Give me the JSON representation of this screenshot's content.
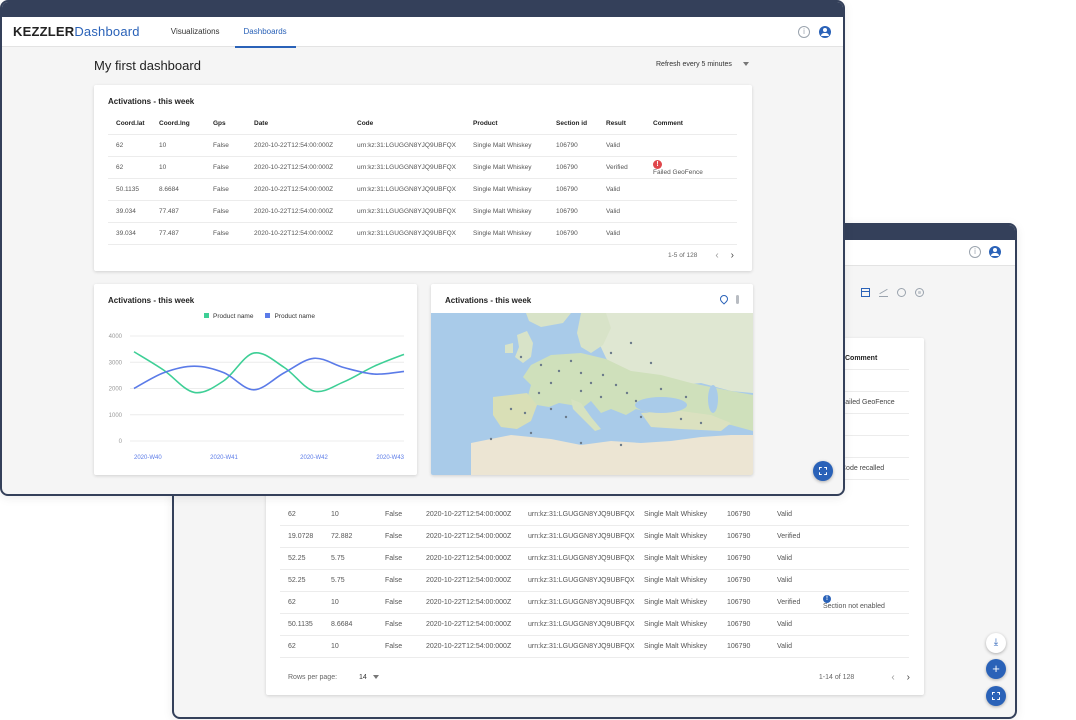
{
  "back_window": {
    "toolbar_icons": [
      "table-icon",
      "line-chart-icon",
      "pie-chart-icon",
      "globe-icon"
    ],
    "comment_header": "Comment",
    "right_column": [
      "",
      "Failed GeoFence",
      "",
      "",
      "Code recalled"
    ],
    "rows": [
      {
        "lat": "62",
        "lng": "10",
        "gps": "False",
        "date": "2020-10-22T12:54:00:000Z",
        "code": "urn:kz:31:LGUGGN8YJQ9UBFQX",
        "product": "Single Malt Whiskey",
        "section": "106790",
        "result": "Valid",
        "comment": ""
      },
      {
        "lat": "19.0728",
        "lng": "72.882",
        "gps": "False",
        "date": "2020-10-22T12:54:00:000Z",
        "code": "urn:kz:31:LGUGGN8YJQ9UBFQX",
        "product": "Single Malt Whiskey",
        "section": "106790",
        "result": "Verified",
        "comment": ""
      },
      {
        "lat": "52.25",
        "lng": "5.75",
        "gps": "False",
        "date": "2020-10-22T12:54:00:000Z",
        "code": "urn:kz:31:LGUGGN8YJQ9UBFQX",
        "product": "Single Malt Whiskey",
        "section": "106790",
        "result": "Valid",
        "comment": ""
      },
      {
        "lat": "52.25",
        "lng": "5.75",
        "gps": "False",
        "date": "2020-10-22T12:54:00:000Z",
        "code": "urn:kz:31:LGUGGN8YJQ9UBFQX",
        "product": "Single Malt Whiskey",
        "section": "106790",
        "result": "Valid",
        "comment": ""
      },
      {
        "lat": "62",
        "lng": "10",
        "gps": "False",
        "date": "2020-10-22T12:54:00:000Z",
        "code": "urn:kz:31:LGUGGN8YJQ9UBFQX",
        "product": "Single Malt Whiskey",
        "section": "106790",
        "result": "Verified",
        "comment": "Section not enabled"
      },
      {
        "lat": "50.1135",
        "lng": "8.6684",
        "gps": "False",
        "date": "2020-10-22T12:54:00:000Z",
        "code": "urn:kz:31:LGUGGN8YJQ9UBFQX",
        "product": "Single Malt Whiskey",
        "section": "106790",
        "result": "Valid",
        "comment": ""
      },
      {
        "lat": "62",
        "lng": "10",
        "gps": "False",
        "date": "2020-10-22T12:54:00:000Z",
        "code": "urn:kz:31:LGUGGN8YJQ9UBFQX",
        "product": "Single Malt Whiskey",
        "section": "106790",
        "result": "Valid",
        "comment": ""
      }
    ],
    "footer": {
      "rows_per_page_label": "Rows per page:",
      "rows_per_page": "14",
      "range": "1-14 of 128"
    }
  },
  "front_window": {
    "brand": {
      "part1": "KEZZLER",
      "part2": "Dashboard"
    },
    "nav": [
      "Visualizations",
      "Dashboards"
    ],
    "active_nav": "Dashboards",
    "page_title": "My first dashboard",
    "refresh": "Refresh every 5 minutes",
    "table_card": {
      "title": "Activations - this week",
      "headers": [
        "Coord.lat",
        "Coord.lng",
        "Gps",
        "Date",
        "Code",
        "Product",
        "Section id",
        "Result",
        "Comment"
      ],
      "rows": [
        {
          "lat": "62",
          "lng": "10",
          "gps": "False",
          "date": "2020-10-22T12:54:00:000Z",
          "code": "urn:kz:31:LGUGGN8YJQ9UBFQX",
          "product": "Single Malt Whiskey",
          "section": "106790",
          "result": "Valid",
          "comment": ""
        },
        {
          "lat": "62",
          "lng": "10",
          "gps": "False",
          "date": "2020-10-22T12:54:00:000Z",
          "code": "urn:kz:31:LGUGGN8YJQ9UBFQX",
          "product": "Single Malt Whiskey",
          "section": "106790",
          "result": "Verified",
          "comment": "Failed GeoFence"
        },
        {
          "lat": "50.1135",
          "lng": "8.6684",
          "gps": "False",
          "date": "2020-10-22T12:54:00:000Z",
          "code": "urn:kz:31:LGUGGN8YJQ9UBFQX",
          "product": "Single Malt Whiskey",
          "section": "106790",
          "result": "Valid",
          "comment": ""
        },
        {
          "lat": "39.034",
          "lng": "77.487",
          "gps": "False",
          "date": "2020-10-22T12:54:00:000Z",
          "code": "urn:kz:31:LGUGGN8YJQ9UBFQX",
          "product": "Single Malt Whiskey",
          "section": "106790",
          "result": "Valid",
          "comment": ""
        },
        {
          "lat": "39.034",
          "lng": "77.487",
          "gps": "False",
          "date": "2020-10-22T12:54:00:000Z",
          "code": "urn:kz:31:LGUGGN8YJQ9UBFQX",
          "product": "Single Malt Whiskey",
          "section": "106790",
          "result": "Valid",
          "comment": ""
        }
      ],
      "range": "1-5 of 128"
    },
    "chart_card": {
      "title": "Activations - this week"
    },
    "map_card": {
      "title": "Activations - this week"
    }
  },
  "chart_data": {
    "type": "line",
    "title": "Activations - this week",
    "categories": [
      "2020-W40",
      "2020-W41",
      "2020-W42",
      "2020-W43"
    ],
    "y_ticks": [
      0,
      1000,
      2000,
      3000,
      4000
    ],
    "ylim": [
      0,
      4000
    ],
    "series": [
      {
        "name": "Product name",
        "color": "#3ecf96",
        "x": [
          0,
          0.33,
          0.67,
          1,
          1.33,
          1.67,
          2,
          2.33,
          2.67,
          3
        ],
        "values": [
          3400,
          2700,
          1850,
          2300,
          3350,
          2800,
          1900,
          2250,
          2850,
          3300
        ]
      },
      {
        "name": "Product name",
        "color": "#5b7be8",
        "x": [
          0,
          0.33,
          0.67,
          1,
          1.33,
          1.67,
          2,
          2.33,
          2.67,
          3
        ],
        "values": [
          2000,
          2600,
          2850,
          2600,
          1950,
          2600,
          3150,
          2800,
          2550,
          2650
        ]
      }
    ],
    "grid": true,
    "legend": "top-center"
  },
  "colors": {
    "accent": "#2a62b8",
    "frame": "#34405a",
    "error": "#e0474c"
  }
}
